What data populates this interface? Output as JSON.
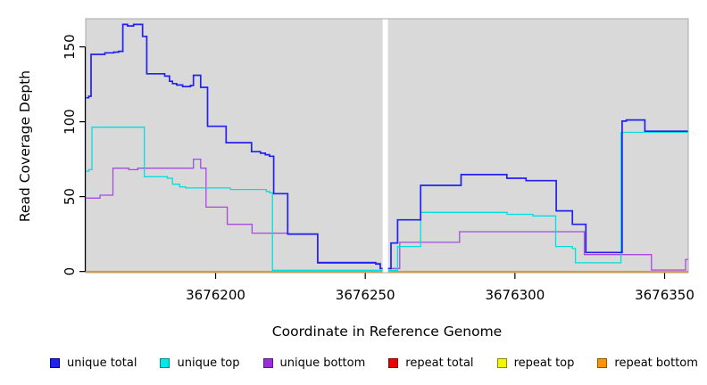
{
  "figure": {
    "bg": "#ffffff",
    "panel_bg": "#d9d9d9",
    "panel_border": "#a8a8a8",
    "axis_color": "#000000"
  },
  "chart_data": {
    "type": "line",
    "subtype": "step-coverage",
    "title": "",
    "xlabel": "Coordinate in Reference Genome",
    "ylabel": "Read Coverage Depth",
    "xlim": [
      3676156.6,
      3676357.9
    ],
    "ylim": [
      -0.8,
      168.8
    ],
    "x_ticks": [
      3676200,
      3676250,
      3676300,
      3676350
    ],
    "y_ticks": [
      0,
      50,
      100,
      150
    ],
    "grid": false,
    "legend_position": "bottom",
    "gap_x": [
      3676255.8,
      3676257.6
    ],
    "draw_order": [
      "repeat total",
      "repeat top",
      "repeat bottom",
      "unique bottom",
      "unique top",
      "unique total"
    ],
    "legend": [
      {
        "label": "unique total",
        "color": "#2121f0",
        "border": "#00008b"
      },
      {
        "label": "unique top",
        "color": "#00e8e8",
        "border": "#008b8b"
      },
      {
        "label": "unique bottom",
        "color": "#9a2fd6",
        "border": "#551a8b"
      },
      {
        "label": "repeat total",
        "color": "#e80000",
        "border": "#8b0000"
      },
      {
        "label": "repeat top",
        "color": "#f5f500",
        "border": "#8b8b00"
      },
      {
        "label": "repeat bottom",
        "color": "#ff9400",
        "border": "#8b5a00"
      }
    ],
    "series": [
      {
        "name": "repeat total",
        "color": "#e80000",
        "width": 1.2,
        "points": [
          [
            3676156.6,
            0
          ]
        ]
      },
      {
        "name": "repeat top",
        "color": "#f5f500",
        "width": 1.2,
        "points": [
          [
            3676156.6,
            0
          ]
        ]
      },
      {
        "name": "repeat bottom",
        "color": "#ff9400",
        "width": 1.6,
        "points": [
          [
            3676156.6,
            0
          ]
        ]
      },
      {
        "name": "unique bottom",
        "color": "#a84ae0",
        "width": 1.3,
        "points": [
          [
            3676156.6,
            49
          ],
          [
            3676161.4,
            51
          ],
          [
            3676165.7,
            69
          ],
          [
            3676171,
            68
          ],
          [
            3676174,
            69
          ],
          [
            3676192.6,
            75
          ],
          [
            3676195,
            69
          ],
          [
            3676196.8,
            43
          ],
          [
            3676203.9,
            31.5
          ],
          [
            3676212.2,
            25.6
          ],
          [
            3676224.1,
            24.8
          ],
          [
            3676234.1,
            5.5
          ],
          [
            3676255,
            2
          ],
          [
            3676261.5,
            19.5
          ],
          [
            3676281.5,
            26.6
          ],
          [
            3676323.2,
            11.3
          ],
          [
            3676345.6,
            1
          ],
          [
            3676357,
            8
          ]
        ]
      },
      {
        "name": "unique top",
        "color": "#00dede",
        "width": 1.3,
        "points": [
          [
            3676156.6,
            67
          ],
          [
            3676157.6,
            68
          ],
          [
            3676158.7,
            96.4
          ],
          [
            3676176.2,
            63.3
          ],
          [
            3676183.9,
            62.3
          ],
          [
            3676185.6,
            58.3
          ],
          [
            3676188,
            56.5
          ],
          [
            3676190,
            55.8
          ],
          [
            3676204.9,
            54.8
          ],
          [
            3676216.9,
            53.5
          ],
          [
            3676218,
            52.5
          ],
          [
            3676219,
            0.8
          ],
          [
            3676260.8,
            16.7
          ],
          [
            3676268.5,
            39.5
          ],
          [
            3676297.4,
            38.2
          ],
          [
            3676306,
            37.1
          ],
          [
            3676313.6,
            16.7
          ],
          [
            3676319.2,
            15.3
          ],
          [
            3676320.2,
            5.8
          ],
          [
            3676335.4,
            92.9
          ]
        ]
      },
      {
        "name": "unique total",
        "color": "#2121f0",
        "width": 1.7,
        "points": [
          [
            3676156.6,
            116
          ],
          [
            3676157.6,
            117
          ],
          [
            3676158.4,
            145
          ],
          [
            3676163,
            146
          ],
          [
            3676166,
            146.5
          ],
          [
            3676167.6,
            147
          ],
          [
            3676169,
            165
          ],
          [
            3676170.6,
            164
          ],
          [
            3676172.6,
            165
          ],
          [
            3676175.6,
            157
          ],
          [
            3676177,
            132
          ],
          [
            3676183,
            130.5
          ],
          [
            3676184.6,
            127
          ],
          [
            3676185.6,
            125.5
          ],
          [
            3676187,
            124.5
          ],
          [
            3676189,
            123.5
          ],
          [
            3676191.6,
            124.2
          ],
          [
            3676192.6,
            131
          ],
          [
            3676195,
            123
          ],
          [
            3676197.3,
            97
          ],
          [
            3676203.5,
            86
          ],
          [
            3676212,
            80
          ],
          [
            3676215,
            79
          ],
          [
            3676216.6,
            78
          ],
          [
            3676218,
            77
          ],
          [
            3676219.4,
            52
          ],
          [
            3676224.1,
            25
          ],
          [
            3676234.1,
            6
          ],
          [
            3676253.5,
            5
          ],
          [
            3676255,
            2
          ],
          [
            3676257.6,
            2
          ],
          [
            3676258.6,
            19
          ],
          [
            3676260.8,
            34.5
          ],
          [
            3676268.5,
            57.5
          ],
          [
            3676282,
            64.7
          ],
          [
            3676297.3,
            62.3
          ],
          [
            3676303.7,
            60.7
          ],
          [
            3676313.8,
            40.5
          ],
          [
            3676319.2,
            31.5
          ],
          [
            3676323.7,
            12.7
          ],
          [
            3676335.8,
            100.4
          ],
          [
            3676337.2,
            101.2
          ],
          [
            3676343.4,
            93.7
          ]
        ]
      }
    ]
  }
}
